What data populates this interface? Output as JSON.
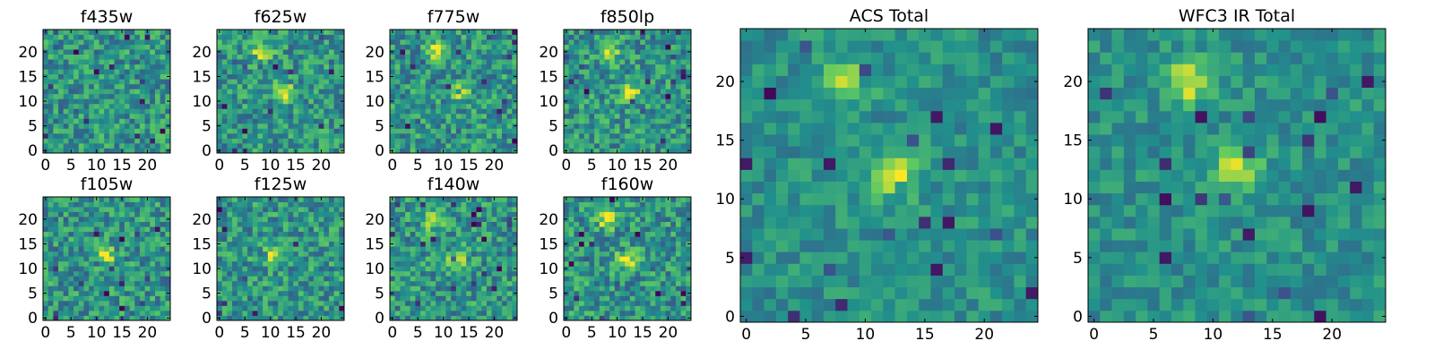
{
  "chart_data": [
    {
      "type": "heatmap",
      "title": "f435w",
      "xticks": [
        0,
        5,
        10,
        15,
        20
      ],
      "yticks": [
        0,
        5,
        10,
        15,
        20
      ],
      "xlim": [
        -0.5,
        24.5
      ],
      "ylim": [
        -0.5,
        24.5
      ],
      "grid_size": 25,
      "bright_spots": []
    },
    {
      "type": "heatmap",
      "title": "f625w",
      "xticks": [
        0,
        5,
        10,
        15,
        20
      ],
      "yticks": [
        0,
        5,
        10,
        15,
        20
      ],
      "xlim": [
        -0.5,
        24.5
      ],
      "ylim": [
        -0.5,
        24.5
      ],
      "grid_size": 25,
      "bright_spots": [
        {
          "x": 8.5,
          "y": 20
        },
        {
          "x": 12.5,
          "y": 12
        }
      ]
    },
    {
      "type": "heatmap",
      "title": "f775w",
      "xticks": [
        0,
        5,
        10,
        15,
        20
      ],
      "yticks": [
        0,
        5,
        10,
        15,
        20
      ],
      "xlim": [
        -0.5,
        24.5
      ],
      "ylim": [
        -0.5,
        24.5
      ],
      "grid_size": 25,
      "bright_spots": [
        {
          "x": 8.5,
          "y": 20
        },
        {
          "x": 13,
          "y": 12
        }
      ]
    },
    {
      "type": "heatmap",
      "title": "f850lp",
      "xticks": [
        0,
        5,
        10,
        15,
        20
      ],
      "yticks": [
        0,
        5,
        10,
        15,
        20
      ],
      "xlim": [
        -0.5,
        24.5
      ],
      "ylim": [
        -0.5,
        24.5
      ],
      "grid_size": 25,
      "bright_spots": [
        {
          "x": 8.5,
          "y": 20
        },
        {
          "x": 12.5,
          "y": 12
        }
      ]
    },
    {
      "type": "heatmap",
      "title": "f105w",
      "xticks": [
        0,
        5,
        10,
        15,
        20
      ],
      "yticks": [
        0,
        5,
        10,
        15,
        20
      ],
      "xlim": [
        -0.5,
        24.5
      ],
      "ylim": [
        -0.5,
        24.5
      ],
      "grid_size": 25,
      "bright_spots": [
        {
          "x": 12,
          "y": 12.5
        }
      ]
    },
    {
      "type": "heatmap",
      "title": "f125w",
      "xticks": [
        0,
        5,
        10,
        15,
        20
      ],
      "yticks": [
        0,
        5,
        10,
        15,
        20
      ],
      "xlim": [
        -0.5,
        24.5
      ],
      "ylim": [
        -0.5,
        24.5
      ],
      "grid_size": 25,
      "bright_spots": [
        {
          "x": 11,
          "y": 13
        }
      ]
    },
    {
      "type": "heatmap",
      "title": "f140w",
      "xticks": [
        0,
        5,
        10,
        15,
        20
      ],
      "yticks": [
        0,
        5,
        10,
        15,
        20
      ],
      "xlim": [
        -0.5,
        24.5
      ],
      "ylim": [
        -0.5,
        24.5
      ],
      "grid_size": 25,
      "bright_spots": [
        {
          "x": 8,
          "y": 20
        },
        {
          "x": 13,
          "y": 12
        }
      ]
    },
    {
      "type": "heatmap",
      "title": "f160w",
      "xticks": [
        0,
        5,
        10,
        15,
        20
      ],
      "yticks": [
        0,
        5,
        10,
        15,
        20
      ],
      "xlim": [
        -0.5,
        24.5
      ],
      "ylim": [
        -0.5,
        24.5
      ],
      "grid_size": 25,
      "bright_spots": [
        {
          "x": 8,
          "y": 20
        },
        {
          "x": 12,
          "y": 12
        }
      ]
    },
    {
      "type": "heatmap",
      "title": "ACS Total",
      "xticks": [
        0,
        5,
        10,
        15,
        20
      ],
      "yticks": [
        0,
        5,
        10,
        15,
        20
      ],
      "xlim": [
        -0.5,
        24.5
      ],
      "ylim": [
        -0.5,
        24.5
      ],
      "grid_size": 25,
      "bright_spots": [
        {
          "x": 8.5,
          "y": 20
        },
        {
          "x": 12.5,
          "y": 12
        }
      ]
    },
    {
      "type": "heatmap",
      "title": "WFC3 IR Total",
      "xticks": [
        0,
        5,
        10,
        15,
        20
      ],
      "yticks": [
        0,
        5,
        10,
        15,
        20
      ],
      "xlim": [
        -0.5,
        24.5
      ],
      "ylim": [
        -0.5,
        24.5
      ],
      "grid_size": 25,
      "bright_spots": [
        {
          "x": 8,
          "y": 20
        },
        {
          "x": 12,
          "y": 12.5
        }
      ]
    }
  ],
  "colormap": [
    "#440154",
    "#3b528b",
    "#21918c",
    "#5ec962",
    "#fde725"
  ]
}
